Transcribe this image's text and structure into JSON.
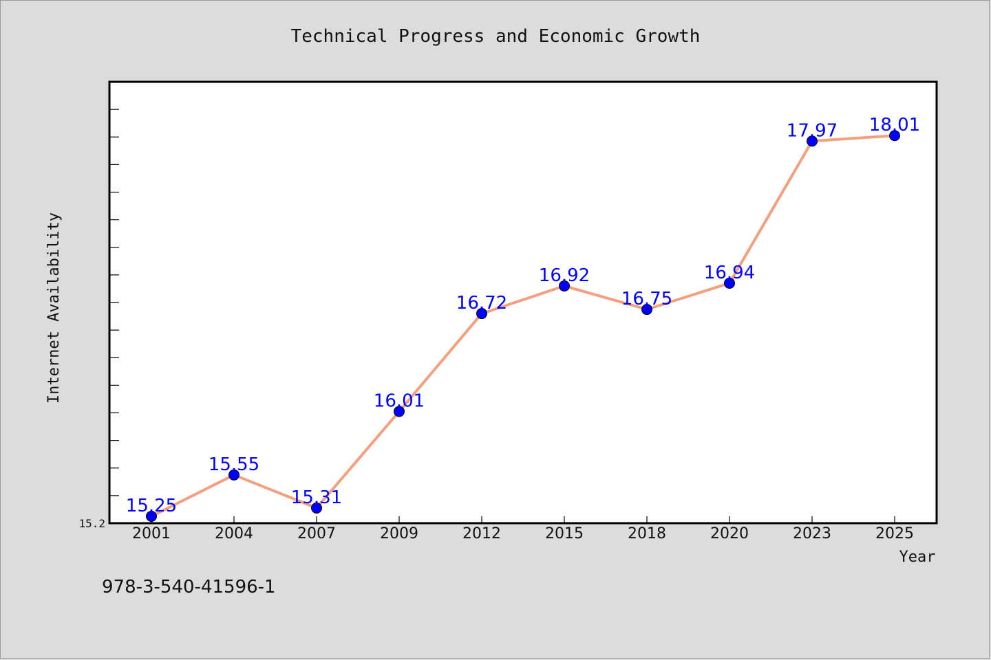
{
  "chart_data": {
    "type": "line",
    "title": "Technical Progress and Economic Growth",
    "xlabel": "Year",
    "ylabel": "Internet Availability",
    "categories": [
      "2001",
      "2004",
      "2007",
      "2009",
      "2012",
      "2015",
      "2018",
      "2020",
      "2023",
      "2025"
    ],
    "series": [
      {
        "values": [
          15.25,
          15.55,
          15.31,
          16.01,
          16.72,
          16.92,
          16.75,
          16.94,
          17.97,
          18.01
        ],
        "line_color": "#f4a07e",
        "marker_color": "#0000ff"
      }
    ],
    "data_labels": [
      "15.25",
      "15.55",
      "15.31",
      "16.01",
      "16.72",
      "16.92",
      "16.75",
      "16.94",
      "17.97",
      "18.01"
    ],
    "data_label_color": "#0000ff",
    "ylim": [
      15.2,
      18.4
    ],
    "yticks_labeled": [
      "15.2"
    ],
    "minor_ytick_step": 0.2,
    "grid": false,
    "legend": "none"
  },
  "footer": {
    "isbn": "978-3-540-41596-1"
  }
}
